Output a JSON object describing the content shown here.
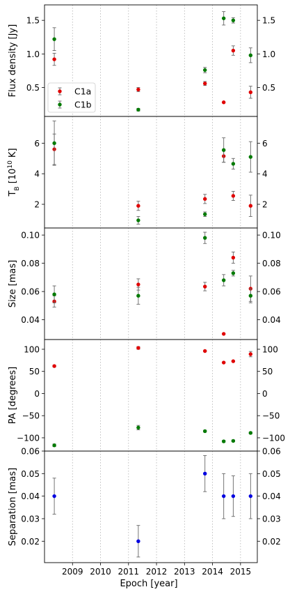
{
  "colors": {
    "C1a": "#e00000",
    "C1b": "#007a00",
    "sep": "#0000e0",
    "err": "#666666",
    "grid": "#b0b0b0"
  },
  "legend": {
    "location": "lower-left of top panel",
    "entries": [
      "C1a",
      "C1b"
    ]
  },
  "chart_data": {
    "type": "scatter",
    "x_ticks": [
      "2009",
      "2010",
      "2011",
      "2012",
      "2013",
      "2014",
      "2015"
    ],
    "xlabel": "Epoch [year]",
    "xlim": [
      2008.0,
      2015.6
    ],
    "grid": "x only (dotted)",
    "panels": [
      {
        "id": "flux",
        "ylabel": "Flux density [Jy]",
        "ylim": [
          0.07,
          1.73
        ],
        "y_ticks": [
          0.5,
          1.0,
          1.5
        ],
        "y_tick_labels": [
          "0.5",
          "1.0",
          "1.5"
        ],
        "series": [
          {
            "name": "C1a",
            "color": "#e00000",
            "x": [
              2008.35,
              2011.35,
              2013.73,
              2014.4,
              2014.74,
              2015.36
            ],
            "y": [
              0.92,
              0.47,
              0.56,
              0.28,
              1.05,
              0.43
            ],
            "err": [
              0.09,
              0.03,
              0.03,
              0.0,
              0.07,
              0.09
            ]
          },
          {
            "name": "C1b",
            "color": "#007a00",
            "x": [
              2008.35,
              2011.35,
              2013.73,
              2014.4,
              2014.74,
              2015.36
            ],
            "y": [
              1.22,
              0.17,
              0.76,
              1.53,
              1.5,
              0.98
            ],
            "err": [
              0.17,
              0.02,
              0.04,
              0.1,
              0.04,
              0.11
            ]
          }
        ]
      },
      {
        "id": "tb",
        "ylabel": "T_B [10^10 K]",
        "ylim": [
          0.45,
          7.75
        ],
        "y_ticks": [
          2,
          4,
          6
        ],
        "y_tick_labels": [
          "2",
          "4",
          "6"
        ],
        "series": [
          {
            "name": "C1a",
            "color": "#e00000",
            "x": [
              2008.35,
              2011.35,
              2013.73,
              2014.4,
              2014.74,
              2015.36
            ],
            "y": [
              5.6,
              1.9,
              2.35,
              5.15,
              2.55,
              1.9
            ],
            "err": [
              1.0,
              0.3,
              0.3,
              0.4,
              0.3,
              0.7
            ]
          },
          {
            "name": "C1b",
            "color": "#007a00",
            "x": [
              2008.35,
              2011.35,
              2013.73,
              2014.4,
              2014.74,
              2015.36
            ],
            "y": [
              6.0,
              0.95,
              1.35,
              5.55,
              4.65,
              5.1
            ],
            "err": [
              1.45,
              0.25,
              0.15,
              0.8,
              0.35,
              1.0
            ]
          }
        ]
      },
      {
        "id": "size",
        "ylabel": "Size [mas]",
        "ylim": [
          0.026,
          0.105
        ],
        "y_ticks": [
          0.04,
          0.06,
          0.08,
          0.1
        ],
        "y_tick_labels": [
          "0.04",
          "0.06",
          "0.08",
          "0.10"
        ],
        "series": [
          {
            "name": "C1a",
            "color": "#e00000",
            "x": [
              2008.35,
              2011.35,
              2013.73,
              2014.4,
              2014.74,
              2015.36
            ],
            "y": [
              0.053,
              0.065,
              0.0635,
              0.03,
              0.084,
              0.062
            ],
            "err": [
              0.004,
              0.004,
              0.003,
              0.0,
              0.004,
              0.009
            ]
          },
          {
            "name": "C1b",
            "color": "#007a00",
            "x": [
              2008.35,
              2011.35,
              2013.73,
              2014.4,
              2014.74,
              2015.36
            ],
            "y": [
              0.058,
              0.057,
              0.098,
              0.068,
              0.073,
              0.057
            ],
            "err": [
              0.006,
              0.006,
              0.004,
              0.004,
              0.002,
              0.005
            ]
          }
        ]
      },
      {
        "id": "pa",
        "ylabel": "PA [degrees]",
        "ylim": [
          -130,
          122
        ],
        "y_ticks": [
          -100,
          -50,
          0,
          50,
          100
        ],
        "y_tick_labels": [
          "−100",
          "−50",
          "0",
          "50",
          "100"
        ],
        "series": [
          {
            "name": "C1a",
            "color": "#e00000",
            "x": [
              2008.35,
              2011.35,
              2013.73,
              2014.4,
              2014.74,
              2015.36
            ],
            "y": [
              62,
              103,
              96,
              70,
              73,
              89
            ],
            "err": [
              2,
              3,
              1,
              1,
              1,
              6
            ]
          },
          {
            "name": "C1b",
            "color": "#007a00",
            "x": [
              2008.35,
              2011.35,
              2013.73,
              2014.4,
              2014.74,
              2015.36
            ],
            "y": [
              -117,
              -77,
              -85,
              -108,
              -107,
              -89
            ],
            "err": [
              3,
              5,
              2,
              2,
              2,
              2
            ]
          }
        ]
      },
      {
        "id": "sep",
        "ylabel": "Separation [mas]",
        "ylim": [
          0.0105,
          0.06
        ],
        "y_ticks": [
          0.02,
          0.03,
          0.04,
          0.05,
          0.06
        ],
        "y_tick_labels": [
          "0.02",
          "0.03",
          "0.04",
          "0.05",
          "0.06"
        ],
        "series": [
          {
            "name": "",
            "color": "#0000e0",
            "x": [
              2008.35,
              2011.35,
              2013.73,
              2014.4,
              2014.74,
              2015.36
            ],
            "y": [
              0.04,
              0.02,
              0.05,
              0.04,
              0.04,
              0.04
            ],
            "err": [
              0.008,
              0.007,
              0.008,
              0.01,
              0.009,
              0.01
            ]
          }
        ]
      }
    ]
  }
}
